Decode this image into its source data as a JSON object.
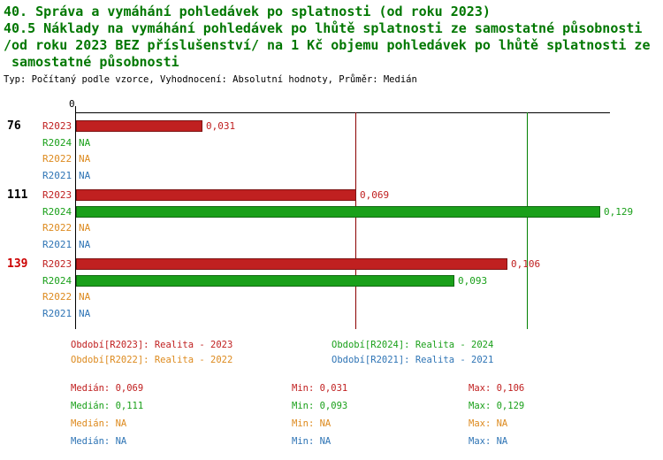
{
  "header": {
    "line1": "40. Správa a vymáhání pohledávek po splatnosti (od roku 2023)",
    "line2": "40.5 Náklady na vymáhání pohledávek po lhůtě splatnosti ze samostatné působnosti",
    "line3": "/od roku 2023 BEZ příslušenství/ na 1 Kč objemu pohledávek po lhůtě splatnosti ze",
    "line4": " samostatné působnosti",
    "meta": "Typ: Počítaný podle vzorce, Vyhodnocení: Absolutní hodnoty, Průměr: Medián"
  },
  "chart_data": {
    "type": "bar",
    "orientation": "horizontal",
    "categories": [
      "76",
      "111",
      "139"
    ],
    "category_colors": [
      "#000000",
      "#000000",
      "#cc0000"
    ],
    "series": [
      {
        "name": "R2023",
        "values": [
          0.031,
          0.069,
          0.106
        ],
        "labels": [
          "0,031",
          "0,069",
          "0,106"
        ]
      },
      {
        "name": "R2024",
        "values": [
          null,
          0.129,
          0.093
        ],
        "labels": [
          "NA",
          "0,129",
          "0,093"
        ]
      },
      {
        "name": "R2022",
        "values": [
          null,
          null,
          null
        ],
        "labels": [
          "NA",
          "NA",
          "NA"
        ]
      },
      {
        "name": "R2021",
        "values": [
          null,
          null,
          null
        ],
        "labels": [
          "NA",
          "NA",
          "NA"
        ]
      }
    ],
    "median_lines": [
      {
        "series": "R2023",
        "value": 0.069
      },
      {
        "series": "R2024",
        "value": 0.111
      }
    ],
    "xlim": [
      0,
      0.1315
    ],
    "axis_zero_label": "0",
    "na_label": "NA",
    "grid": false,
    "legend_position": "bottom"
  },
  "colors": {
    "series": {
      "R2023": "#c02020",
      "R2024": "#1aa01a",
      "R2022": "#dd8a1e",
      "R2021": "#2e74b5"
    },
    "median_lines": {
      "R2023": "#8b0000",
      "R2024": "#008000"
    },
    "title": "#007700",
    "category_highlight": "#cc0000",
    "axis": "#000000"
  },
  "legend": {
    "items": [
      {
        "series": "R2023",
        "text": "Období[R2023]: Realita - 2023"
      },
      {
        "series": "R2024",
        "text": "Období[R2024]: Realita - 2024"
      },
      {
        "series": "R2022",
        "text": "Období[R2022]: Realita - 2022"
      },
      {
        "series": "R2021",
        "text": "Období[R2021]: Realita - 2021"
      }
    ]
  },
  "stats": {
    "rows": [
      {
        "series": "R2023",
        "median": "Medián: 0,069",
        "min": "Min: 0,031",
        "max": "Max: 0,106"
      },
      {
        "series": "R2024",
        "median": "Medián: 0,111",
        "min": "Min: 0,093",
        "max": "Max: 0,129"
      },
      {
        "series": "R2022",
        "median": "Medián: NA",
        "min": "Min: NA",
        "max": "Max: NA"
      },
      {
        "series": "R2021",
        "median": "Medián: NA",
        "min": "Min: NA",
        "max": "Max: NA"
      }
    ]
  }
}
